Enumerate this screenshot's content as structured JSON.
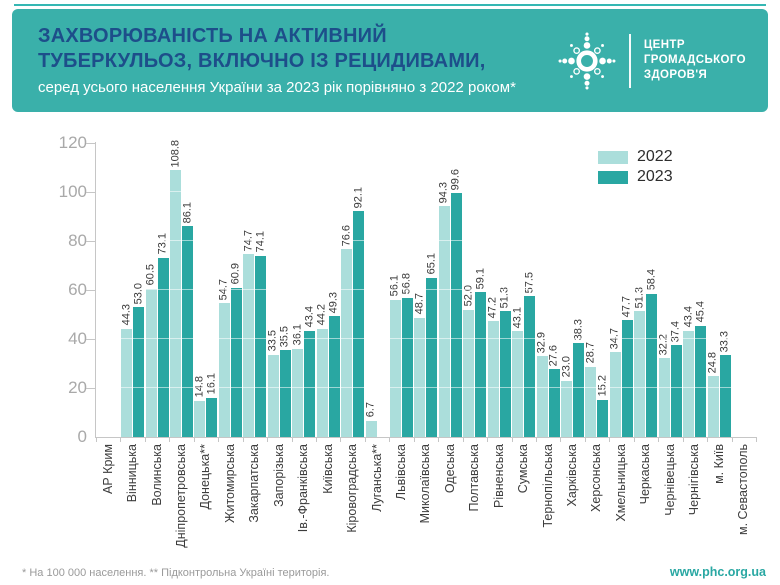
{
  "header": {
    "title_line1": "ЗАХВОРЮВАНІСТЬ НА АКТИВНИЙ",
    "title_line2": "ТУБЕРКУЛЬОЗ, ВКЛЮЧНО ІЗ РЕЦИДИВАМИ,",
    "subtitle": "серед усього населення України за 2023 рік порівняно з 2022 роком*",
    "logo": {
      "org_line1": "ЦЕНТР",
      "org_line2": "ГРОМАДСЬКОГО",
      "org_line3": "ЗДОРОВ'Я"
    },
    "colors": {
      "background": "#3AB0AA",
      "title": "#1D4E8A",
      "subtitle": "#FFFFFF"
    }
  },
  "chart_data": {
    "type": "bar",
    "title": "",
    "xlabel": "",
    "ylabel": "",
    "ylim": [
      0,
      120
    ],
    "yticks": [
      0,
      20,
      40,
      60,
      80,
      100,
      120
    ],
    "grid": "horizontal-over-bars",
    "legend_position": "top-right",
    "value_labels": "rotated-90-one-decimal",
    "categories": [
      "АР Крим",
      "Вінницька",
      "Волинська",
      "Дніпропетровська",
      "Донецька**",
      "Житомирська",
      "Закарпатська",
      "Запорізька",
      "Ів.-Франківська",
      "Київська",
      "Кіровоградська",
      "Луганська**",
      "Львівська",
      "Миколаївська",
      "Одеська",
      "Полтавська",
      "Рівненська",
      "Сумська",
      "Тернопільська",
      "Харківська",
      "Херсонська",
      "Хмельницька",
      "Черкаська",
      "Чернівецька",
      "Чернігівська",
      "м. Київ",
      "м. Севастополь"
    ],
    "series": [
      {
        "name": "2022",
        "color": "#ABDEDB",
        "values": [
          null,
          44.3,
          60.5,
          108.8,
          14.8,
          54.7,
          74.7,
          33.5,
          36.1,
          44.2,
          76.6,
          6.7,
          56.1,
          48.7,
          94.3,
          52.0,
          47.2,
          43.1,
          32.9,
          23.0,
          28.7,
          34.7,
          51.3,
          32.2,
          43.4,
          24.8,
          null
        ]
      },
      {
        "name": "2023",
        "color": "#29A7A2",
        "values": [
          null,
          53.0,
          73.1,
          86.1,
          16.1,
          60.9,
          74.1,
          35.5,
          43.4,
          49.3,
          92.1,
          null,
          56.8,
          65.1,
          99.6,
          59.1,
          51.3,
          57.5,
          27.6,
          38.3,
          15.2,
          47.7,
          58.4,
          37.4,
          45.4,
          33.3,
          null
        ]
      }
    ]
  },
  "footer": {
    "note": "* На 100 000 населення. ** Підконтрольна Україні територія.",
    "link": "www.phc.org.ua"
  }
}
